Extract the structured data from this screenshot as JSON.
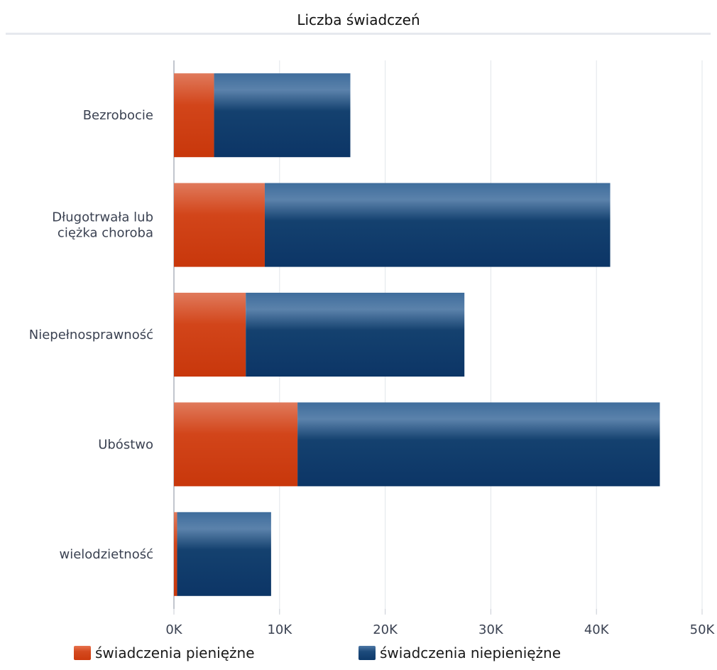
{
  "chart_data": {
    "type": "bar",
    "orientation": "horizontal",
    "stacked": true,
    "title": "Liczba świadczeń",
    "categories": [
      [
        "Bezrobocie"
      ],
      [
        "Długotrwała lub",
        "ciężka choroba"
      ],
      [
        "Niepełnosprawność"
      ],
      [
        "Ubóstwo"
      ],
      [
        "wielodzietność"
      ]
    ],
    "series": [
      {
        "name": "świadczenia pieniężne",
        "color": "#cc3a0e",
        "values": [
          3800,
          8600,
          6800,
          11700,
          300
        ]
      },
      {
        "name": "świadczenia niepieniężne",
        "color": "#0e3a6b",
        "values": [
          12900,
          32700,
          20700,
          34300,
          8900
        ]
      }
    ],
    "xlim": [
      0,
      50000
    ],
    "x_ticks": [
      "0K",
      "10K",
      "20K",
      "30K",
      "40K",
      "50K"
    ],
    "grid": true,
    "legend_position": "bottom"
  }
}
